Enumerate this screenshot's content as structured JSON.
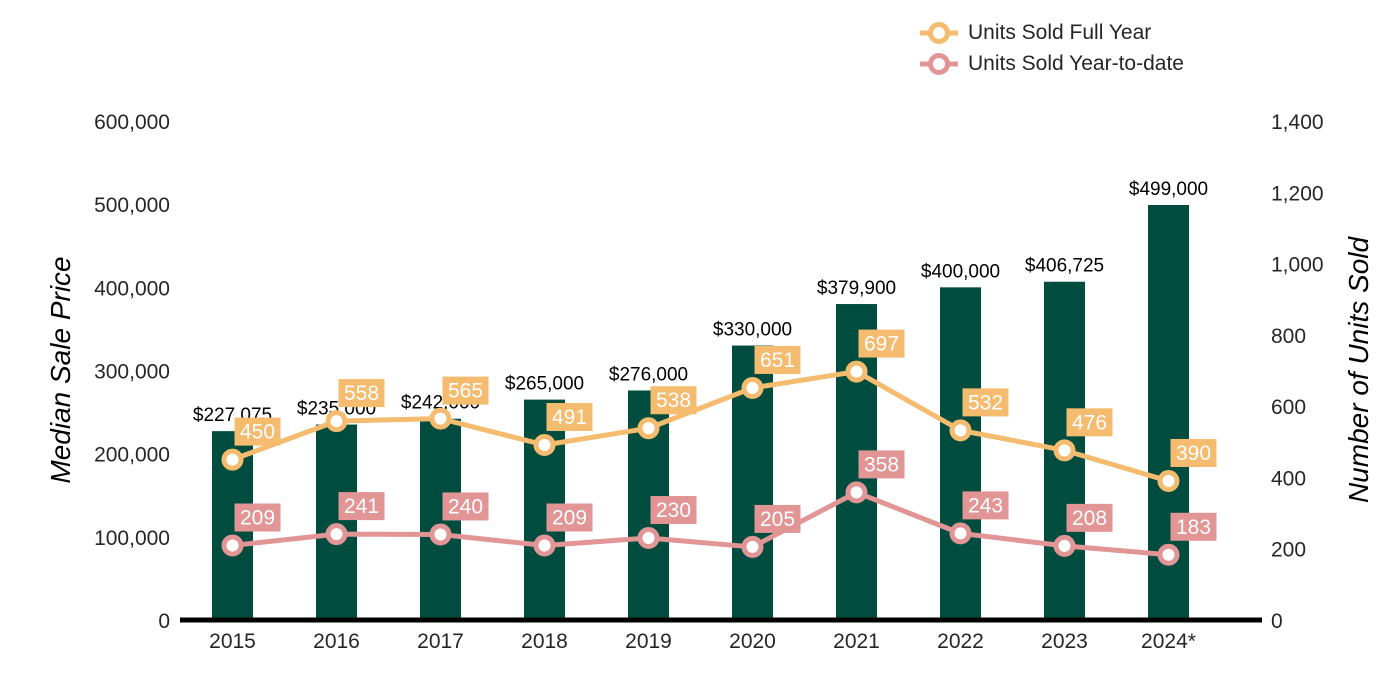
{
  "chart_data": {
    "type": "bar",
    "categories": [
      "2015",
      "2016",
      "2017",
      "2018",
      "2019",
      "2020",
      "2021",
      "2022",
      "2023",
      "2024*"
    ],
    "ylabel": "Median Sale Price",
    "y2label": "Number of Units Sold",
    "ylim": [
      0,
      600000
    ],
    "y2lim": [
      0,
      1400
    ],
    "yticks": [
      "0",
      "100,000",
      "200,000",
      "300,000",
      "400,000",
      "500,000",
      "600,000"
    ],
    "y2ticks": [
      "0",
      "200",
      "400",
      "600",
      "800",
      "1,000",
      "1,200",
      "1,400"
    ],
    "grid": false,
    "legend_position": "top-right",
    "bars": {
      "values": [
        227075,
        235000,
        242000,
        265000,
        276000,
        330000,
        379900,
        400000,
        406725,
        499000
      ],
      "labels": [
        "$227,075",
        "$235,000",
        "$242,000",
        "$265,000",
        "$276,000",
        "$330,000",
        "$379,900",
        "$400,000",
        "$406,725",
        "$499,000"
      ],
      "color": "#004d40"
    },
    "series": [
      {
        "name": "Units Sold Full Year",
        "axis": "right",
        "color": "#f5bb6e",
        "values": [
          450,
          558,
          565,
          491,
          538,
          651,
          697,
          532,
          476,
          390
        ]
      },
      {
        "name": "Units Sold Year-to-date",
        "axis": "right",
        "color": "#e19595",
        "values": [
          209,
          241,
          240,
          209,
          230,
          205,
          358,
          243,
          208,
          183
        ]
      }
    ]
  }
}
